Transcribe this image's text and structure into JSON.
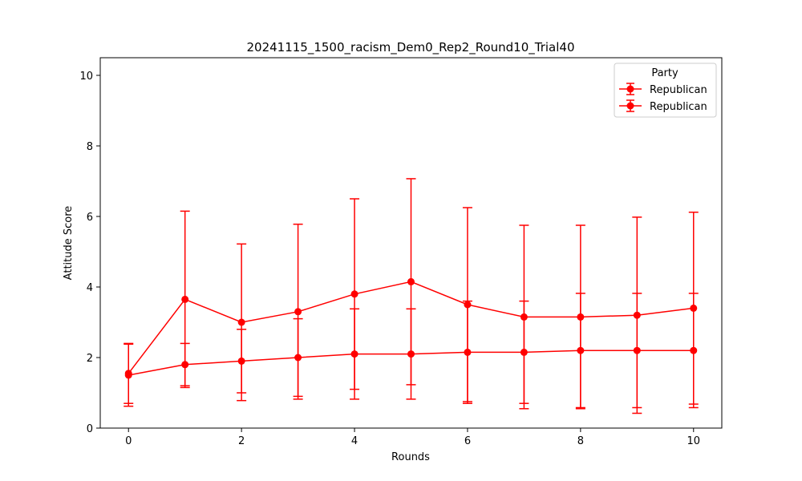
{
  "chart_data": {
    "type": "line",
    "title": "20241115_1500_racism_Dem0_Rep2_Round10_Trial40",
    "xlabel": "Rounds",
    "ylabel": "Attitude Score",
    "xlim": [
      -0.5,
      10.5
    ],
    "ylim": [
      0,
      10.5
    ],
    "xticks": [
      0,
      2,
      4,
      6,
      8,
      10
    ],
    "yticks": [
      0,
      2,
      4,
      6,
      8,
      10
    ],
    "grid": false,
    "legend": {
      "title": "Party",
      "placement": "top-right"
    },
    "color": "#ff0000",
    "series": [
      {
        "name": "Republican",
        "x": [
          0,
          1,
          2,
          3,
          4,
          5,
          6,
          7,
          8,
          9,
          10
        ],
        "y": [
          1.55,
          3.65,
          3.0,
          3.3,
          3.8,
          4.15,
          3.5,
          3.15,
          3.15,
          3.2,
          3.4
        ],
        "err": [
          0.85,
          2.5,
          2.22,
          2.48,
          2.7,
          2.92,
          2.75,
          2.6,
          2.6,
          2.78,
          2.72
        ]
      },
      {
        "name": "Republican",
        "x": [
          0,
          1,
          2,
          3,
          4,
          5,
          6,
          7,
          8,
          9,
          10
        ],
        "y": [
          1.5,
          1.8,
          1.9,
          2.0,
          2.1,
          2.1,
          2.15,
          2.15,
          2.2,
          2.2,
          2.2
        ],
        "err": [
          0.88,
          0.6,
          0.9,
          1.1,
          1.28,
          1.28,
          1.45,
          1.45,
          1.62,
          1.62,
          1.62
        ]
      }
    ]
  }
}
